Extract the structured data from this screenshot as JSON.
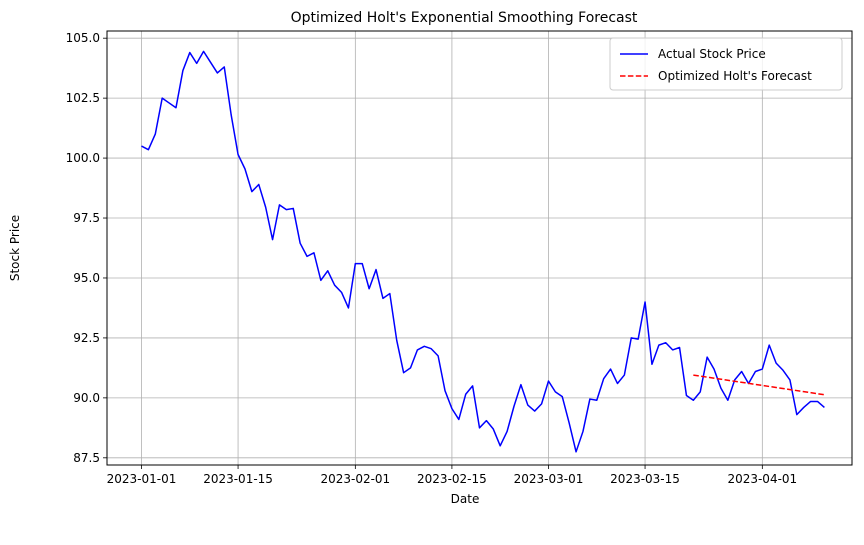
{
  "chart_data": {
    "type": "line",
    "title": "Optimized Holt's Exponential Smoothing Forecast",
    "xlabel": "Date",
    "ylabel": "Stock Price",
    "xlim": [
      "2022-12-27",
      "2023-04-14"
    ],
    "ylim": [
      87.2,
      105.3
    ],
    "grid": true,
    "legend_position": "top-right",
    "x_ticks": [
      "2023-01-01",
      "2023-01-15",
      "2023-02-01",
      "2023-02-15",
      "2023-03-01",
      "2023-03-15",
      "2023-04-01"
    ],
    "y_ticks": [
      "87.5",
      "90.0",
      "92.5",
      "95.0",
      "97.5",
      "100.0",
      "102.5",
      "105.0"
    ],
    "series": [
      {
        "name": "Actual Stock Price",
        "color": "#0000ff",
        "style": "solid",
        "x": [
          "2023-01-01",
          "2023-01-02",
          "2023-01-03",
          "2023-01-04",
          "2023-01-05",
          "2023-01-06",
          "2023-01-07",
          "2023-01-08",
          "2023-01-09",
          "2023-01-10",
          "2023-01-11",
          "2023-01-12",
          "2023-01-13",
          "2023-01-14",
          "2023-01-15",
          "2023-01-16",
          "2023-01-17",
          "2023-01-18",
          "2023-01-19",
          "2023-01-20",
          "2023-01-21",
          "2023-01-22",
          "2023-01-23",
          "2023-01-24",
          "2023-01-25",
          "2023-01-26",
          "2023-01-27",
          "2023-01-28",
          "2023-01-29",
          "2023-01-30",
          "2023-01-31",
          "2023-02-01",
          "2023-02-02",
          "2023-02-03",
          "2023-02-04",
          "2023-02-05",
          "2023-02-06",
          "2023-02-07",
          "2023-02-08",
          "2023-02-09",
          "2023-02-10",
          "2023-02-11",
          "2023-02-12",
          "2023-02-13",
          "2023-02-14",
          "2023-02-15",
          "2023-02-16",
          "2023-02-17",
          "2023-02-18",
          "2023-02-19",
          "2023-02-20",
          "2023-02-21",
          "2023-02-22",
          "2023-02-23",
          "2023-02-24",
          "2023-02-25",
          "2023-02-26",
          "2023-02-27",
          "2023-02-28",
          "2023-03-01",
          "2023-03-02",
          "2023-03-03",
          "2023-03-04",
          "2023-03-05",
          "2023-03-06",
          "2023-03-07",
          "2023-03-08",
          "2023-03-09",
          "2023-03-10",
          "2023-03-11",
          "2023-03-12",
          "2023-03-13",
          "2023-03-14",
          "2023-03-15",
          "2023-03-16",
          "2023-03-17",
          "2023-03-18",
          "2023-03-19",
          "2023-03-20",
          "2023-03-21",
          "2023-03-22",
          "2023-03-23",
          "2023-03-24",
          "2023-03-25",
          "2023-03-26",
          "2023-03-27",
          "2023-03-28",
          "2023-03-29",
          "2023-03-30",
          "2023-03-31",
          "2023-04-01",
          "2023-04-02",
          "2023-04-03",
          "2023-04-04",
          "2023-04-05",
          "2023-04-06",
          "2023-04-07",
          "2023-04-08",
          "2023-04-09",
          "2023-04-10"
        ],
        "values": [
          100.5,
          100.35,
          101.0,
          102.5,
          102.3,
          102.1,
          103.65,
          104.4,
          103.95,
          104.45,
          104.0,
          103.55,
          103.8,
          101.8,
          100.15,
          99.55,
          98.6,
          98.9,
          97.95,
          96.6,
          98.05,
          97.85,
          97.9,
          96.45,
          95.9,
          96.05,
          94.9,
          95.3,
          94.7,
          94.4,
          93.75,
          95.6,
          95.6,
          94.55,
          95.35,
          94.15,
          94.35,
          92.4,
          91.05,
          91.25,
          92.0,
          92.15,
          92.05,
          91.75,
          90.3,
          89.55,
          89.1,
          90.15,
          90.5,
          88.75,
          89.05,
          88.7,
          88.0,
          88.6,
          89.65,
          90.55,
          89.7,
          89.45,
          89.75,
          90.7,
          90.25,
          90.05,
          88.95,
          87.75,
          88.6,
          89.95,
          89.9,
          90.8,
          91.2,
          90.6,
          90.95,
          92.5,
          92.45,
          94.0,
          91.4,
          92.2,
          92.3,
          92.0,
          92.1,
          90.1,
          89.9,
          90.25,
          91.7,
          91.2,
          90.4,
          89.9,
          90.75,
          91.1,
          90.6,
          91.1,
          91.2,
          92.2,
          91.45,
          91.15,
          90.75,
          89.3,
          89.6,
          89.85,
          89.85,
          89.6
        ]
      },
      {
        "name": "Optimized Holt's Forecast",
        "color": "#ff0000",
        "style": "dashed",
        "x": [
          "2023-03-22",
          "2023-04-10"
        ],
        "values": [
          90.95,
          90.13
        ]
      }
    ]
  }
}
